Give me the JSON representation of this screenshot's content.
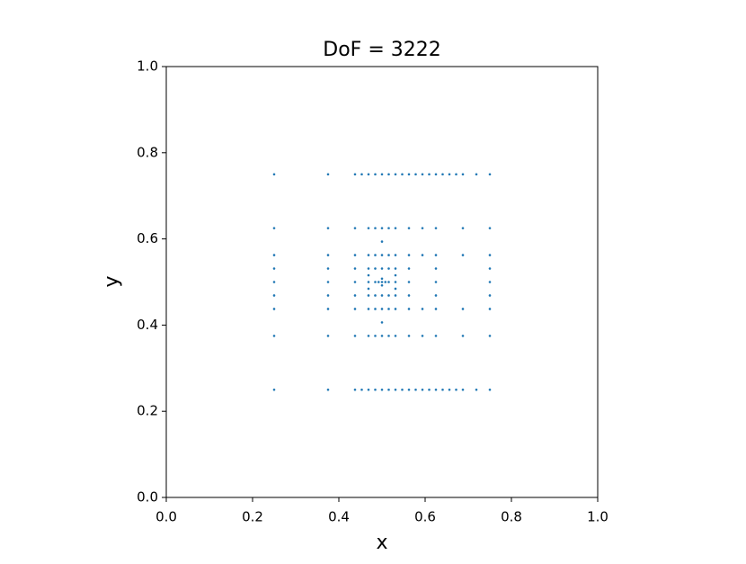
{
  "chart_data": {
    "type": "scatter",
    "title": "DoF = 3222",
    "xlabel": "x",
    "ylabel": "y",
    "color": "#1f77b4",
    "xlim": [
      0,
      1
    ],
    "ylim": [
      0,
      1
    ],
    "xticks": [
      {
        "value": 0,
        "label": "0.0"
      },
      0.2,
      0.4,
      0.6,
      0.8,
      {
        "value": 1,
        "label": "1.0"
      }
    ],
    "yticks": [
      {
        "value": 0,
        "label": "0.0"
      },
      0.2,
      0.4,
      0.6,
      0.8,
      {
        "value": 1,
        "label": "1.0"
      }
    ],
    "x": [
      0.25,
      0.375,
      0.4375,
      0.453125,
      0.46875,
      0.484375,
      0.5,
      0.515625,
      0.53125,
      0.546875,
      0.5625,
      0.578125,
      0.59375,
      0.609375,
      0.625,
      0.640625,
      0.65625,
      0.671875,
      0.6875,
      0.71875,
      0.75,
      0.25,
      0.375,
      0.4375,
      0.453125,
      0.46875,
      0.484375,
      0.5,
      0.515625,
      0.53125,
      0.546875,
      0.5625,
      0.578125,
      0.59375,
      0.609375,
      0.625,
      0.640625,
      0.65625,
      0.671875,
      0.6875,
      0.71875,
      0.75,
      0.25,
      0.375,
      0.4375,
      0.46875,
      0.484375,
      0.5,
      0.515625,
      0.53125,
      0.5625,
      0.59375,
      0.625,
      0.6875,
      0.75,
      0.25,
      0.375,
      0.4375,
      0.46875,
      0.484375,
      0.5,
      0.515625,
      0.53125,
      0.5625,
      0.59375,
      0.625,
      0.6875,
      0.75,
      0.25,
      0.375,
      0.4375,
      0.5625,
      0.625,
      0.75,
      0.25,
      0.375,
      0.4375,
      0.5625,
      0.625,
      0.75,
      0.25,
      0.375,
      0.4375,
      0.5625,
      0.625,
      0.75,
      0.25,
      0.375,
      0.4375,
      0.5625,
      0.625,
      0.75,
      0.25,
      0.375,
      0.4375,
      0.5625,
      0.625,
      0.75,
      0.46875,
      0.484375,
      0.5,
      0.515625,
      0.53125,
      0.59375,
      0.6875,
      0.46875,
      0.484375,
      0.5,
      0.515625,
      0.53125,
      0.59375,
      0.6875,
      0.46875,
      0.484375,
      0.5,
      0.515625,
      0.53125,
      0.46875,
      0.484375,
      0.5,
      0.515625,
      0.53125,
      0.46875,
      0.46875,
      0.46875,
      0.53125,
      0.53125,
      0.53125,
      0.5,
      0.5,
      0.5,
      0.484375,
      0.4921875,
      0.5078125,
      0.515625,
      0.5,
      0.5
    ],
    "values": [
      0.75,
      0.75,
      0.75,
      0.75,
      0.75,
      0.75,
      0.75,
      0.75,
      0.75,
      0.75,
      0.75,
      0.75,
      0.75,
      0.75,
      0.75,
      0.75,
      0.75,
      0.75,
      0.75,
      0.75,
      0.75,
      0.25,
      0.25,
      0.25,
      0.25,
      0.25,
      0.25,
      0.25,
      0.25,
      0.25,
      0.25,
      0.25,
      0.25,
      0.25,
      0.25,
      0.25,
      0.25,
      0.25,
      0.25,
      0.25,
      0.25,
      0.25,
      0.625,
      0.625,
      0.625,
      0.625,
      0.625,
      0.625,
      0.625,
      0.625,
      0.625,
      0.625,
      0.625,
      0.625,
      0.625,
      0.375,
      0.375,
      0.375,
      0.375,
      0.375,
      0.375,
      0.375,
      0.375,
      0.375,
      0.375,
      0.375,
      0.375,
      0.375,
      0.4375,
      0.4375,
      0.4375,
      0.4375,
      0.4375,
      0.4375,
      0.46875,
      0.46875,
      0.46875,
      0.46875,
      0.46875,
      0.46875,
      0.5,
      0.5,
      0.5,
      0.5,
      0.5,
      0.5,
      0.53125,
      0.53125,
      0.53125,
      0.53125,
      0.53125,
      0.53125,
      0.5625,
      0.5625,
      0.5625,
      0.5625,
      0.5625,
      0.5625,
      0.5625,
      0.5625,
      0.5625,
      0.5625,
      0.5625,
      0.5625,
      0.5625,
      0.4375,
      0.4375,
      0.4375,
      0.4375,
      0.4375,
      0.4375,
      0.4375,
      0.53125,
      0.53125,
      0.53125,
      0.53125,
      0.53125,
      0.46875,
      0.46875,
      0.46875,
      0.46875,
      0.46875,
      0.484375,
      0.5,
      0.515625,
      0.484375,
      0.5,
      0.515625,
      0.4921875,
      0.5,
      0.5078125,
      0.5,
      0.5,
      0.5,
      0.5,
      0.59375,
      0.40625
    ]
  }
}
